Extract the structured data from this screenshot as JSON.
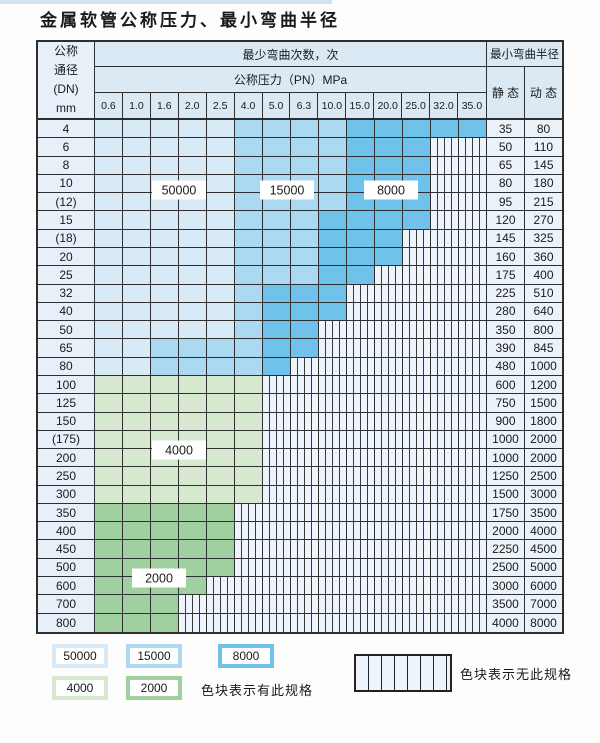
{
  "title": "金属软管公称压力、最小弯曲半径",
  "palette": {
    "B1": "#d9eaf7",
    "B2": "#abd9f1",
    "B3": "#6fc2ea",
    "G1": "#d7e8d0",
    "G2": "#a0d0a0",
    "hatch_bg": "#edf4fb",
    "header_bg": "#dbe9f5",
    "dn_bg": "#e7f0f9",
    "value_bg": "#ebf3fa",
    "border": "#2f2f2f"
  },
  "table": {
    "header": {
      "dn_lines": [
        "公称",
        "通径",
        "(DN)",
        "mm"
      ],
      "bend_times_label": "最少弯曲次数，次",
      "pressure_label": "公称压力（PN）MPa",
      "pressures": [
        "0.6",
        "1.0",
        "1.6",
        "2.0",
        "2.5",
        "4.0",
        "5.0",
        "6.3",
        "10.0",
        "15.0",
        "20.0",
        "25.0",
        "32.0",
        "35.0"
      ],
      "radius_label": "最小弯曲半径",
      "static_label": "静 态",
      "dynamic_label": "动 态"
    },
    "zone_values": {
      "B1": "50000",
      "B2": "15000",
      "B3": "8000",
      "G1": "4000",
      "G2": "2000"
    },
    "rows": [
      {
        "dn": "4",
        "spec": [
          [
            "B1",
            5
          ],
          [
            "B2",
            4
          ],
          [
            "B3",
            5
          ]
        ],
        "static": "35",
        "dynamic": "80"
      },
      {
        "dn": "6",
        "spec": [
          [
            "B1",
            5
          ],
          [
            "B2",
            4
          ],
          [
            "B3",
            3
          ]
        ],
        "static": "50",
        "dynamic": "110"
      },
      {
        "dn": "8",
        "spec": [
          [
            "B1",
            5
          ],
          [
            "B2",
            4
          ],
          [
            "B3",
            3
          ]
        ],
        "static": "65",
        "dynamic": "145"
      },
      {
        "dn": "10",
        "spec": [
          [
            "B1",
            5
          ],
          [
            "B2",
            4
          ],
          [
            "B3",
            3
          ]
        ],
        "static": "80",
        "dynamic": "180"
      },
      {
        "dn": "(12)",
        "spec": [
          [
            "B1",
            5
          ],
          [
            "B2",
            4
          ],
          [
            "B3",
            3
          ]
        ],
        "static": "95",
        "dynamic": "215"
      },
      {
        "dn": "15",
        "spec": [
          [
            "B1",
            5
          ],
          [
            "B2",
            3
          ],
          [
            "B3",
            4
          ]
        ],
        "static": "120",
        "dynamic": "270"
      },
      {
        "dn": "(18)",
        "spec": [
          [
            "B1",
            5
          ],
          [
            "B2",
            3
          ],
          [
            "B3",
            3
          ]
        ],
        "static": "145",
        "dynamic": "325"
      },
      {
        "dn": "20",
        "spec": [
          [
            "B1",
            5
          ],
          [
            "B2",
            3
          ],
          [
            "B3",
            3
          ]
        ],
        "static": "160",
        "dynamic": "360"
      },
      {
        "dn": "25",
        "spec": [
          [
            "B1",
            5
          ],
          [
            "B2",
            3
          ],
          [
            "B3",
            2
          ]
        ],
        "static": "175",
        "dynamic": "400"
      },
      {
        "dn": "32",
        "spec": [
          [
            "B1",
            5
          ],
          [
            "B2",
            1
          ],
          [
            "B3",
            3
          ]
        ],
        "static": "225",
        "dynamic": "510"
      },
      {
        "dn": "40",
        "spec": [
          [
            "B1",
            5
          ],
          [
            "B2",
            1
          ],
          [
            "B3",
            3
          ]
        ],
        "static": "280",
        "dynamic": "640"
      },
      {
        "dn": "50",
        "spec": [
          [
            "B1",
            5
          ],
          [
            "B2",
            1
          ],
          [
            "B3",
            2
          ]
        ],
        "static": "350",
        "dynamic": "800"
      },
      {
        "dn": "65",
        "spec": [
          [
            "B1",
            2
          ],
          [
            "B2",
            4
          ],
          [
            "B3",
            2
          ]
        ],
        "static": "390",
        "dynamic": "845"
      },
      {
        "dn": "80",
        "spec": [
          [
            "B1",
            2
          ],
          [
            "B2",
            4
          ],
          [
            "B3",
            1
          ]
        ],
        "static": "480",
        "dynamic": "1000"
      },
      {
        "dn": "100",
        "spec": [
          [
            "G1",
            6
          ]
        ],
        "static": "600",
        "dynamic": "1200"
      },
      {
        "dn": "125",
        "spec": [
          [
            "G1",
            6
          ]
        ],
        "static": "750",
        "dynamic": "1500"
      },
      {
        "dn": "150",
        "spec": [
          [
            "G1",
            6
          ]
        ],
        "static": "900",
        "dynamic": "1800"
      },
      {
        "dn": "(175)",
        "spec": [
          [
            "G1",
            6
          ]
        ],
        "static": "1000",
        "dynamic": "2000"
      },
      {
        "dn": "200",
        "spec": [
          [
            "G1",
            6
          ]
        ],
        "static": "1000",
        "dynamic": "2000"
      },
      {
        "dn": "250",
        "spec": [
          [
            "G1",
            6
          ]
        ],
        "static": "1250",
        "dynamic": "2500"
      },
      {
        "dn": "300",
        "spec": [
          [
            "G1",
            6
          ]
        ],
        "static": "1500",
        "dynamic": "3000"
      },
      {
        "dn": "350",
        "spec": [
          [
            "G2",
            5
          ]
        ],
        "static": "1750",
        "dynamic": "3500"
      },
      {
        "dn": "400",
        "spec": [
          [
            "G2",
            5
          ]
        ],
        "static": "2000",
        "dynamic": "4000"
      },
      {
        "dn": "450",
        "spec": [
          [
            "G2",
            5
          ]
        ],
        "static": "2250",
        "dynamic": "4500"
      },
      {
        "dn": "500",
        "spec": [
          [
            "G2",
            5
          ]
        ],
        "static": "2500",
        "dynamic": "5000"
      },
      {
        "dn": "600",
        "spec": [
          [
            "G2",
            4
          ]
        ],
        "static": "3000",
        "dynamic": "6000"
      },
      {
        "dn": "700",
        "spec": [
          [
            "G2",
            3
          ]
        ],
        "static": "3500",
        "dynamic": "7000"
      },
      {
        "dn": "800",
        "spec": [
          [
            "G2",
            3
          ]
        ],
        "static": "4000",
        "dynamic": "8000"
      }
    ]
  },
  "legend": {
    "items": [
      {
        "label": "50000",
        "zone": "B1"
      },
      {
        "label": "15000",
        "zone": "B2"
      },
      {
        "label": "8000",
        "zone": "B3"
      },
      {
        "label": "4000",
        "zone": "G1"
      },
      {
        "label": "2000",
        "zone": "G2"
      }
    ],
    "has_spec_text": "色块表示有此规格",
    "no_spec_text": "色块表示无此规格"
  }
}
